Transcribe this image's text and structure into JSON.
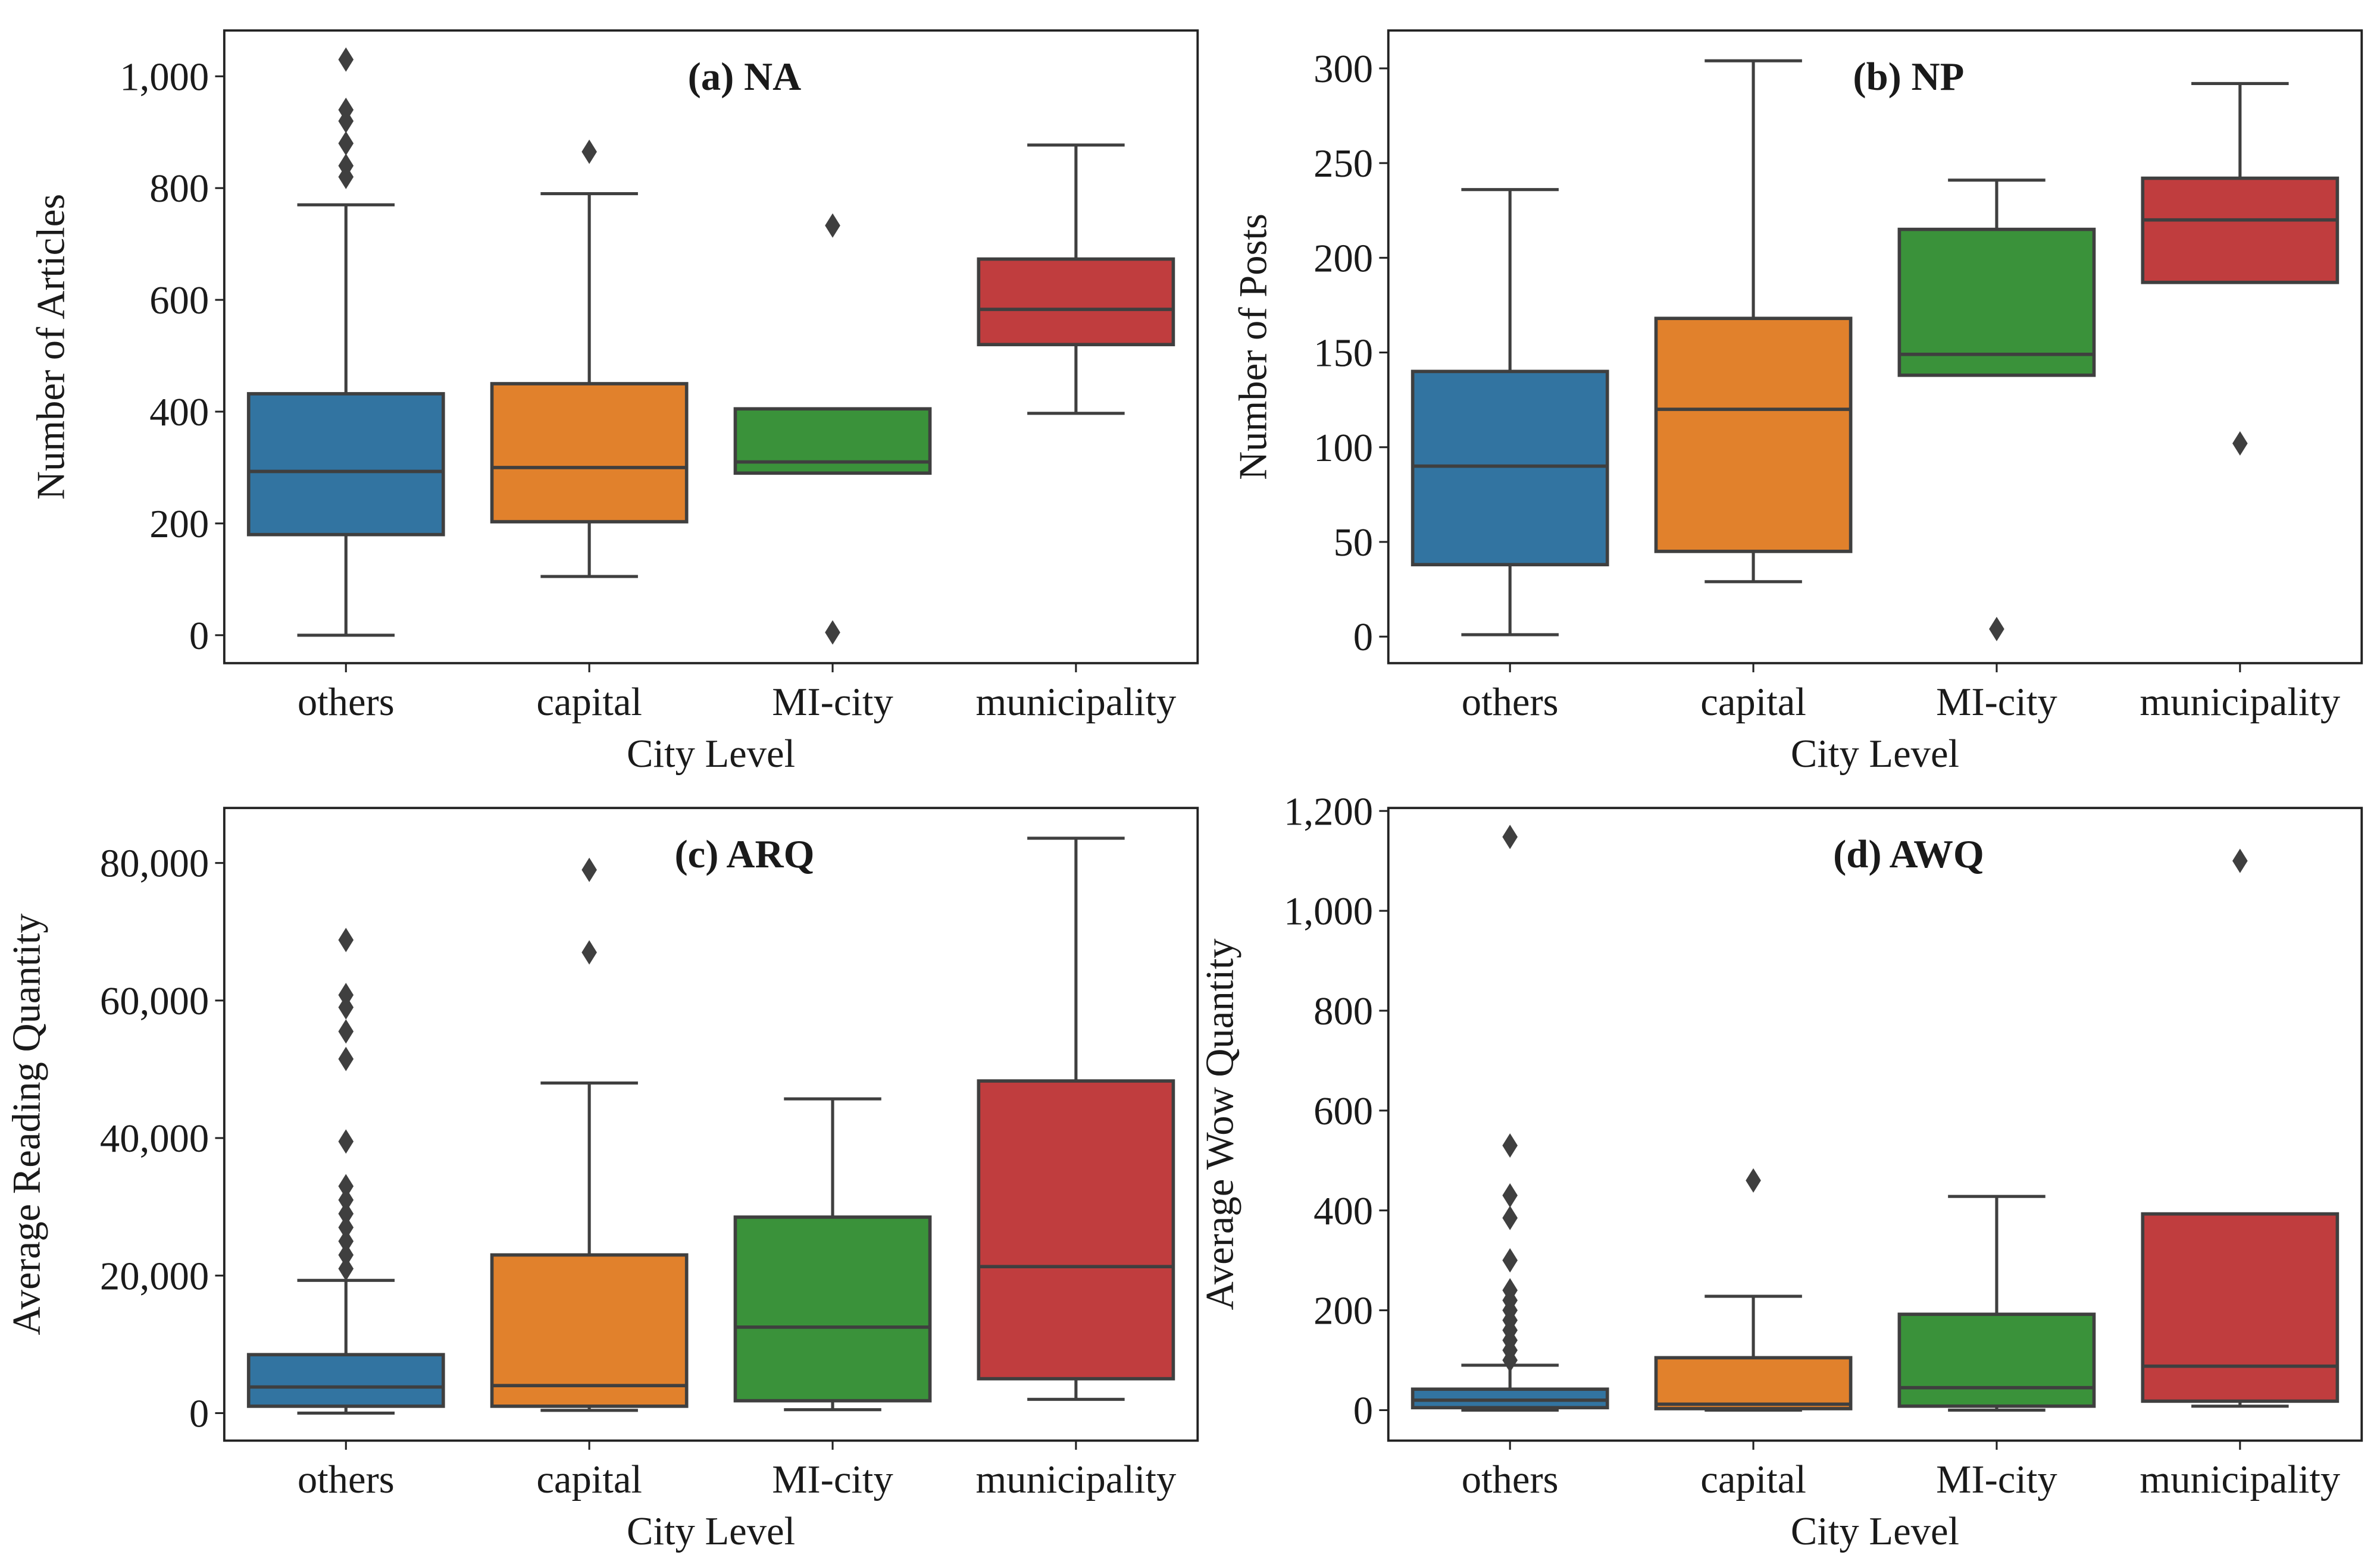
{
  "colors": {
    "others": "#3274a1",
    "capital": "#e1812c",
    "MI-city": "#3a923a",
    "municipality": "#c03d3e",
    "line": "#3f3f3f"
  },
  "chart_data": [
    {
      "type": "box",
      "title": "(a) NA",
      "xlabel": "City Level",
      "ylabel": "Number of Articles",
      "categories": [
        "others",
        "capital",
        "MI-city",
        "municipality"
      ],
      "ylim": [
        -50,
        1082
      ],
      "yticks": [
        0,
        200,
        400,
        600,
        800,
        1000
      ],
      "ytick_labels": [
        "0",
        "200",
        "400",
        "600",
        "800",
        "1,000"
      ],
      "boxes": [
        {
          "whislo": 0,
          "q1": 180,
          "med": 293,
          "q3": 432,
          "whishi": 770,
          "fliers": [
            1030,
            940,
            920,
            880,
            840,
            820
          ]
        },
        {
          "whislo": 105,
          "q1": 203,
          "med": 300,
          "q3": 450,
          "whishi": 790,
          "fliers": [
            865
          ]
        },
        {
          "whislo": 290,
          "q1": 290,
          "med": 310,
          "q3": 405,
          "whishi": 405,
          "fliers": [
            733,
            5
          ]
        },
        {
          "whislo": 397,
          "q1": 520,
          "med": 583,
          "q3": 673,
          "whishi": 877,
          "fliers": []
        }
      ]
    },
    {
      "type": "box",
      "title": "(b) NP",
      "xlabel": "City Level",
      "ylabel": "Number of Posts",
      "categories": [
        "others",
        "capital",
        "MI-city",
        "municipality"
      ],
      "ylim": [
        -14,
        320
      ],
      "yticks": [
        0,
        50,
        100,
        150,
        200,
        250,
        300
      ],
      "ytick_labels": [
        "0",
        "50",
        "100",
        "150",
        "200",
        "250",
        "300"
      ],
      "boxes": [
        {
          "whislo": 1,
          "q1": 38,
          "med": 90,
          "q3": 140,
          "whishi": 236,
          "fliers": []
        },
        {
          "whislo": 29,
          "q1": 45,
          "med": 120,
          "q3": 168,
          "whishi": 304,
          "fliers": []
        },
        {
          "whislo": 138,
          "q1": 138,
          "med": 149,
          "q3": 215,
          "whishi": 241,
          "fliers": [
            4
          ]
        },
        {
          "whislo": 187,
          "q1": 187,
          "med": 220,
          "q3": 242,
          "whishi": 292,
          "fliers": [
            102
          ]
        }
      ]
    },
    {
      "type": "box",
      "title": "(c) ARQ",
      "xlabel": "City Level",
      "ylabel": "Average Reading Quantity",
      "categories": [
        "others",
        "capital",
        "MI-city",
        "municipality"
      ],
      "ylim": [
        -4000,
        88000
      ],
      "yticks": [
        0,
        20000,
        40000,
        60000,
        80000
      ],
      "ytick_labels": [
        "0",
        "20,000",
        "40,000",
        "60,000",
        "80,000"
      ],
      "boxes": [
        {
          "whislo": 0,
          "q1": 1000,
          "med": 3800,
          "q3": 8500,
          "whishi": 19300,
          "fliers": [
            68800,
            60800,
            59000,
            55500,
            51500,
            39500,
            33000,
            31000,
            29000,
            27000,
            25000,
            23000,
            21000
          ]
        },
        {
          "whislo": 400,
          "q1": 1000,
          "med": 4000,
          "q3": 23000,
          "whishi": 48000,
          "fliers": [
            79000,
            67000
          ]
        },
        {
          "whislo": 500,
          "q1": 1800,
          "med": 12500,
          "q3": 28500,
          "whishi": 45700,
          "fliers": []
        },
        {
          "whislo": 2000,
          "q1": 5000,
          "med": 21300,
          "q3": 48300,
          "whishi": 83600,
          "fliers": []
        }
      ]
    },
    {
      "type": "box",
      "title": "(d) AWQ",
      "xlabel": "City Level",
      "ylabel": "Average Wow Quantity",
      "categories": [
        "others",
        "capital",
        "MI-city",
        "municipality"
      ],
      "ylim": [
        -61,
        1206
      ],
      "yticks": [
        0,
        200,
        400,
        600,
        800,
        1000,
        1200
      ],
      "ytick_labels": [
        "0",
        "200",
        "400",
        "600",
        "800",
        "1,000",
        "1,200"
      ],
      "boxes": [
        {
          "whislo": 0,
          "q1": 5,
          "med": 20,
          "q3": 42,
          "whishi": 90,
          "fliers": [
            1148,
            530,
            430,
            385,
            300,
            240,
            220,
            200,
            180,
            160,
            140,
            120,
            100
          ]
        },
        {
          "whislo": 0,
          "q1": 3,
          "med": 12,
          "q3": 105,
          "whishi": 228,
          "fliers": [
            460
          ]
        },
        {
          "whislo": 0,
          "q1": 8,
          "med": 45,
          "q3": 192,
          "whishi": 428,
          "fliers": []
        },
        {
          "whislo": 8,
          "q1": 18,
          "med": 88,
          "q3": 393,
          "whishi": 393,
          "fliers": [
            1100
          ]
        }
      ]
    }
  ]
}
